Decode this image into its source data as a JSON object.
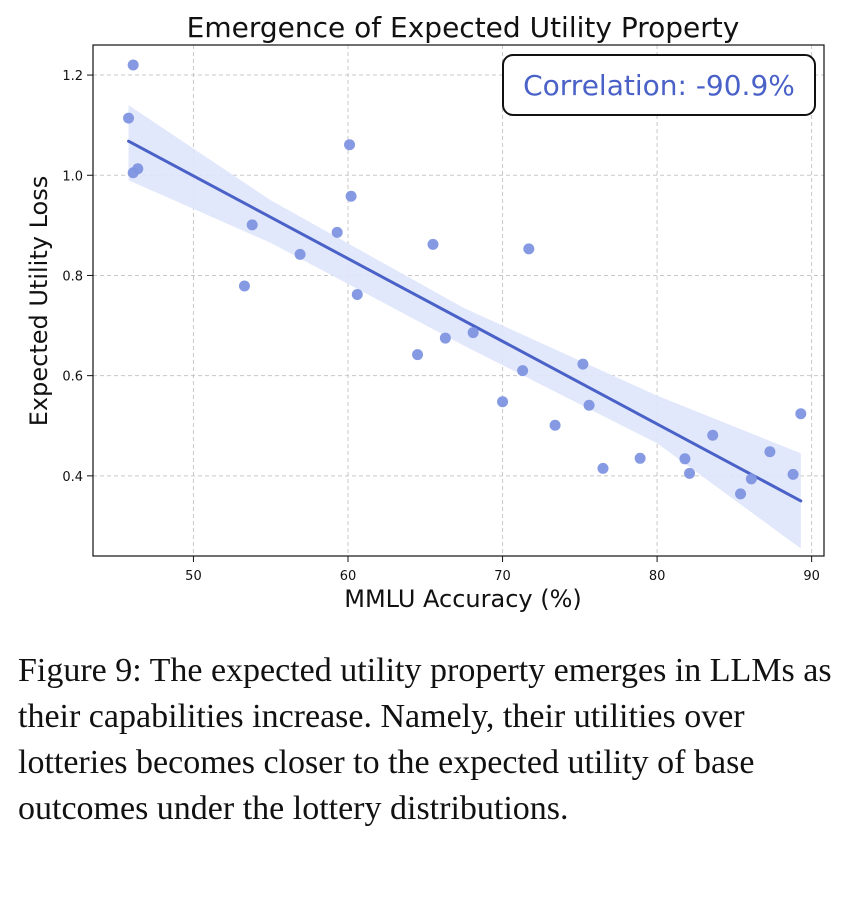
{
  "chart_data": {
    "type": "scatter",
    "title": "Emergence of Expected Utility Property",
    "xlabel": "MMLU Accuracy (%)",
    "ylabel": "Expected Utility Loss",
    "xlim": [
      43.5,
      90.8
    ],
    "ylim": [
      0.24,
      1.26
    ],
    "xticks": [
      50,
      60,
      70,
      80,
      90
    ],
    "yticks": [
      0.4,
      0.6,
      0.8,
      1.0,
      1.2
    ],
    "xtick_labels": [
      "50",
      "60",
      "70",
      "80",
      "90"
    ],
    "ytick_labels": [
      "0.4",
      "0.6",
      "0.8",
      "1.0",
      "1.2"
    ],
    "grid": true,
    "annotation": "Correlation: -90.9%",
    "colors": {
      "points": "#7f95e1",
      "fit_line": "#4a62c8",
      "confidence_band": "#dfe6fb",
      "annotation": "#4a62c8"
    },
    "points": [
      {
        "x": 45.8,
        "y": 1.114
      },
      {
        "x": 46.1,
        "y": 1.22
      },
      {
        "x": 46.1,
        "y": 1.005
      },
      {
        "x": 46.4,
        "y": 1.013
      },
      {
        "x": 53.3,
        "y": 0.779
      },
      {
        "x": 53.8,
        "y": 0.901
      },
      {
        "x": 56.9,
        "y": 0.842
      },
      {
        "x": 59.3,
        "y": 0.886
      },
      {
        "x": 60.1,
        "y": 1.061
      },
      {
        "x": 60.2,
        "y": 0.958
      },
      {
        "x": 60.6,
        "y": 0.762
      },
      {
        "x": 64.5,
        "y": 0.642
      },
      {
        "x": 65.5,
        "y": 0.862
      },
      {
        "x": 66.3,
        "y": 0.675
      },
      {
        "x": 68.1,
        "y": 0.686
      },
      {
        "x": 70.0,
        "y": 0.548
      },
      {
        "x": 71.3,
        "y": 0.61
      },
      {
        "x": 71.7,
        "y": 0.853
      },
      {
        "x": 73.4,
        "y": 0.501
      },
      {
        "x": 75.2,
        "y": 0.623
      },
      {
        "x": 75.6,
        "y": 0.541
      },
      {
        "x": 76.5,
        "y": 0.415
      },
      {
        "x": 78.9,
        "y": 0.435
      },
      {
        "x": 81.8,
        "y": 0.434
      },
      {
        "x": 82.1,
        "y": 0.405
      },
      {
        "x": 83.6,
        "y": 0.481
      },
      {
        "x": 85.4,
        "y": 0.364
      },
      {
        "x": 86.1,
        "y": 0.394
      },
      {
        "x": 87.3,
        "y": 0.448
      },
      {
        "x": 88.8,
        "y": 0.403
      },
      {
        "x": 89.3,
        "y": 0.524
      }
    ],
    "fit_line": {
      "x": [
        45.8,
        89.3
      ],
      "y": [
        1.068,
        0.35
      ]
    },
    "confidence_band": {
      "x": [
        45.8,
        55.0,
        67.5,
        80.0,
        89.3
      ],
      "upper": [
        1.14,
        0.95,
        0.735,
        0.56,
        0.445
      ],
      "lower": [
        0.99,
        0.865,
        0.66,
        0.465,
        0.255
      ]
    }
  },
  "caption": "Figure 9: The expected utility property emerges in LLMs as their capabilities increase. Namely, their utilities over lotteries becomes closer to the expected utility of base outcomes under the lottery distributions."
}
